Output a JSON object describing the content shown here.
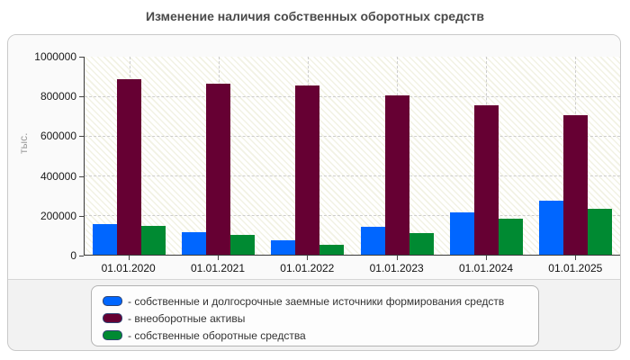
{
  "title": "Изменение наличия собственных оборотных средств",
  "y_axis": {
    "label": "тыс."
  },
  "chart_data": {
    "type": "bar",
    "title": "Изменение наличия собственных оборотных средств",
    "xlabel": "",
    "ylabel": "тыс.",
    "ylim": [
      0,
      1000000
    ],
    "y_ticks": [
      0,
      200000,
      400000,
      600000,
      800000,
      1000000
    ],
    "grid": true,
    "legend_position": "bottom",
    "categories": [
      "01.01.2020",
      "01.01.2021",
      "01.01.2022",
      "01.01.2023",
      "01.01.2024",
      "01.01.2025"
    ],
    "series": [
      {
        "name": "- собственные и долгосрочные заемные источники формирования средств",
        "color": "#0066ff",
        "values": [
          155000,
          115000,
          75000,
          140000,
          215000,
          275000
        ]
      },
      {
        "name": "- внеоборотные активы",
        "color": "#660033",
        "values": [
          885000,
          865000,
          855000,
          805000,
          755000,
          705000
        ]
      },
      {
        "name": "- собственные оборотные средства",
        "color": "#008a32",
        "values": [
          147000,
          100000,
          50000,
          110000,
          182000,
          232000
        ]
      }
    ]
  },
  "colors": {
    "card_background": "#f2f2f2",
    "plot_hatch": "#f2f2e4",
    "gridline": "#cdcdcd",
    "axis_line": "#3a3a3a",
    "title_text": "#4a4a4a",
    "legend_swatch_border": "#2e4372"
  }
}
